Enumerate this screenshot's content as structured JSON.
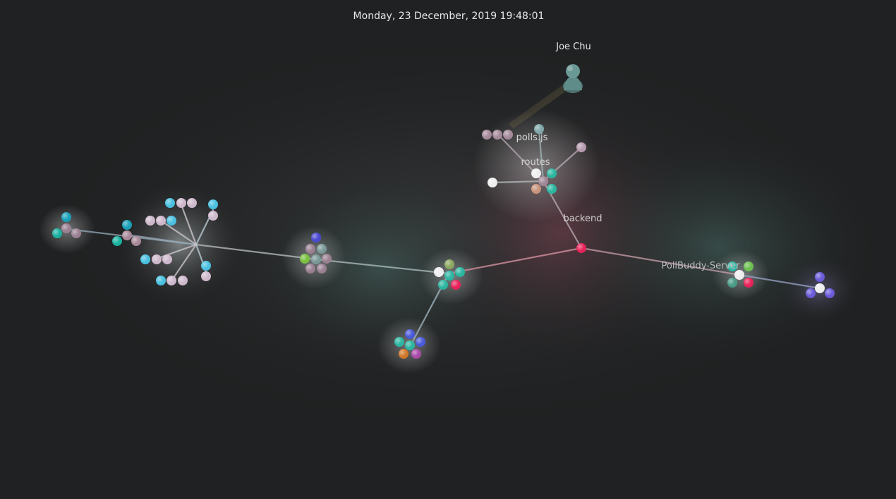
{
  "header": {
    "datetime": "Monday, 23 December, 2019 19:48:01"
  },
  "user": {
    "name": "Joe Chu",
    "icon": "user-avatar-icon"
  },
  "directories": [
    {
      "id": "polls",
      "label": "polls.js"
    },
    {
      "id": "routes",
      "label": "routes"
    },
    {
      "id": "backend",
      "label": "backend"
    },
    {
      "id": "server",
      "label": "PollBuddy-Server"
    }
  ],
  "colors": {
    "background": "#202122",
    "edge": "#a9b4b8",
    "edge_backend": "#c97c8c",
    "label": "#e6e6e6",
    "dir_label": "#cfcfcf",
    "backend_node": "#e8225a",
    "avatar": "#5f8b88"
  }
}
